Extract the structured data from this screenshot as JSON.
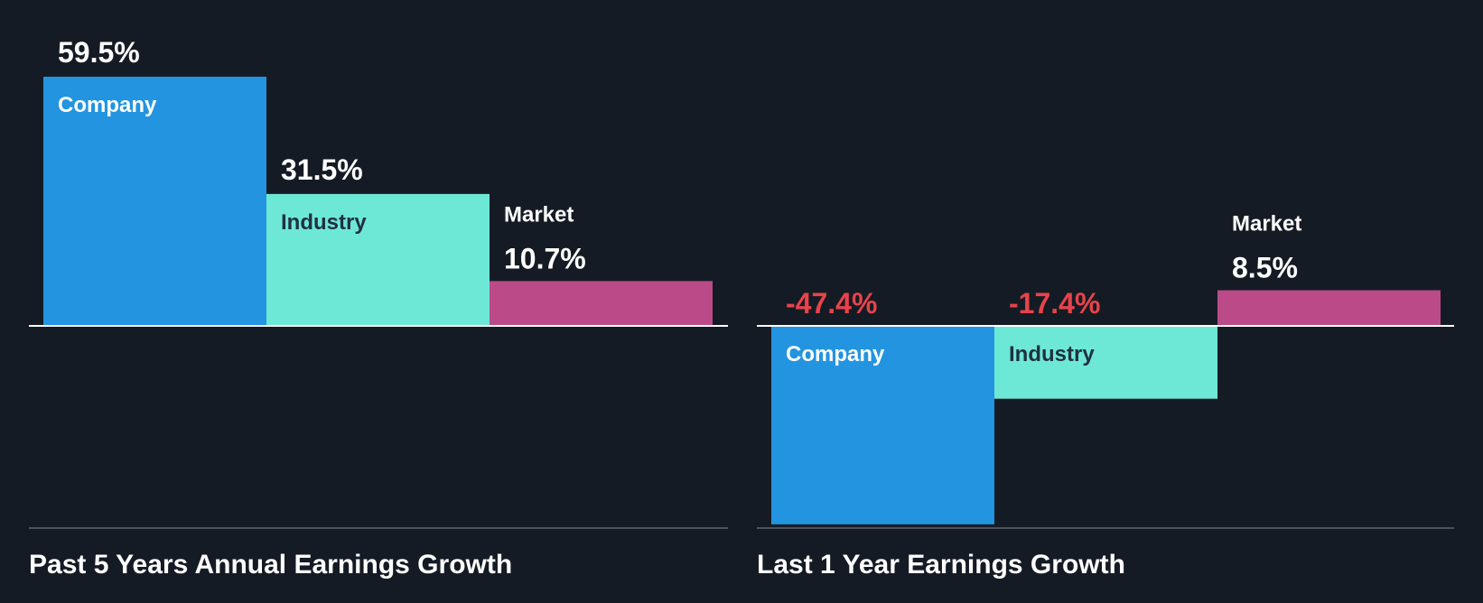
{
  "colors": {
    "background": "#151b24",
    "company": "#2394e0",
    "industry": "#6ee8d6",
    "market": "#bb4b88",
    "positive_text": "#ffffff",
    "negative_text": "#e8434a",
    "inside_label_on_blue": "#ffffff",
    "inside_label_on_teal": "#1f3040",
    "axis_line": "#ffffff",
    "baseline": "#4a5260"
  },
  "chart_data": [
    {
      "type": "bar",
      "title": "Past 5 Years Annual Earnings Growth",
      "categories": [
        "Company",
        "Industry",
        "Market"
      ],
      "values": [
        59.5,
        31.5,
        10.7
      ],
      "value_labels": [
        "59.5%",
        "31.5%",
        "10.7%"
      ],
      "unit": "%",
      "ylim": [
        -48,
        59.5
      ],
      "grid": false,
      "legend": "none"
    },
    {
      "type": "bar",
      "title": "Last 1 Year Earnings Growth",
      "categories": [
        "Company",
        "Industry",
        "Market"
      ],
      "values": [
        -47.4,
        -17.4,
        8.5
      ],
      "value_labels": [
        "-47.4%",
        "-17.4%",
        "8.5%"
      ],
      "unit": "%",
      "ylim": [
        -47.4,
        8.5
      ],
      "grid": false,
      "legend": "none"
    }
  ]
}
